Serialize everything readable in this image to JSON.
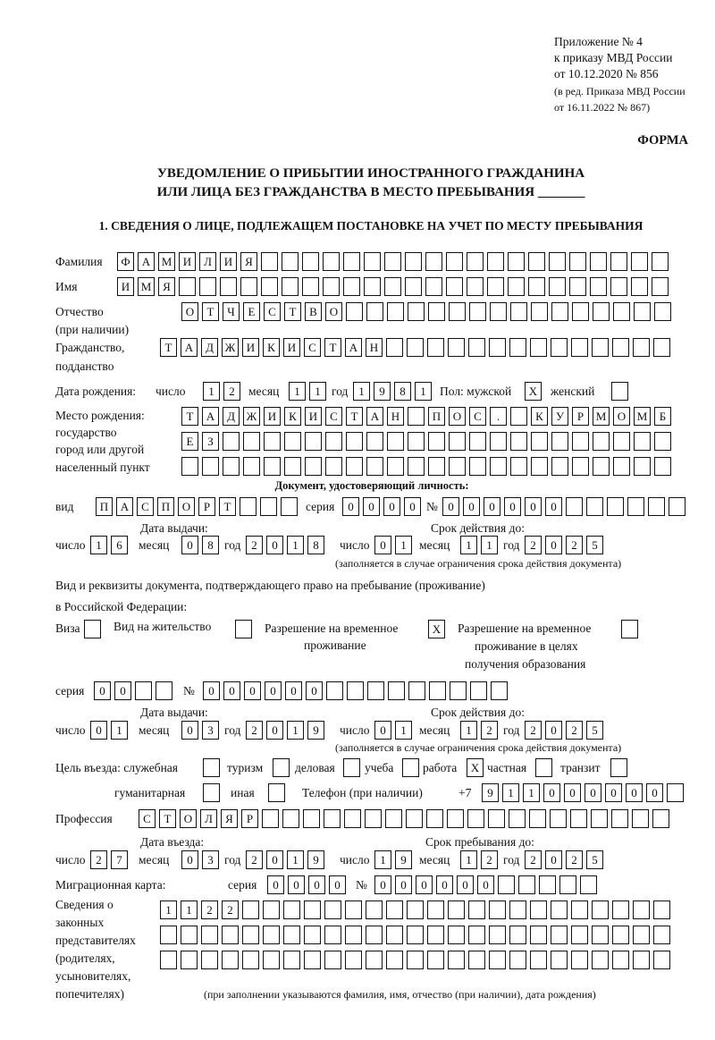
{
  "header": {
    "appendix": "Приложение № 4",
    "order": "к приказу МВД России",
    "order_date": "от 10.12.2020 № 856",
    "revision1": "(в ред. Приказа МВД России",
    "revision2": "от 16.11.2022 № 867)",
    "form_label": "ФОРМА",
    "title1": "УВЕДОМЛЕНИЕ О ПРИБЫТИИ ИНОСТРАННОГО ГРАЖДАНИНА",
    "title2": "ИЛИ ЛИЦА БЕЗ ГРАЖДАНСТВА В МЕСТО ПРЕБЫВАНИЯ _______",
    "section1": "1. СВЕДЕНИЯ О ЛИЦЕ, ПОДЛЕЖАЩЕМ ПОСТАНОВКЕ НА УЧЕТ ПО МЕСТУ ПРЕБЫВАНИЯ"
  },
  "labels": {
    "surname": "Фамилия",
    "name": "Имя",
    "patronymic1": "Отчество",
    "patronymic2": "(при наличии)",
    "citizenship1": "Гражданство,",
    "citizenship2": "подданство",
    "birth_date": "Дата рождения:",
    "day": "число",
    "month": "месяц",
    "year": "год",
    "sex": "Пол: мужской",
    "female": "женский",
    "birthplace1": "Место рождения:",
    "birthplace2": "государство",
    "birthplace3": "город или другой",
    "birthplace4": "населенный пункт",
    "id_doc": "Документ, удостоверяющий личность:",
    "kind": "вид",
    "series": "серия",
    "number": "№",
    "issue_date": "Дата выдачи:",
    "valid_until": "Срок действия до:",
    "valid_note": "(заполняется в случае ограничения срока действия документа)",
    "residence_doc1": "Вид и реквизиты документа, подтверждающего право на пребывание (проживание)",
    "residence_doc2": "в Российской Федерации:",
    "visa": "Виза",
    "residence_permit": "Вид на жительство",
    "temp_permit1": "Разрешение на временное",
    "temp_permit2": "проживание",
    "edu_permit1": "Разрешение на временное",
    "edu_permit2": "проживание в целях",
    "edu_permit3": "получения образования",
    "purpose": "Цель въезда: служебная",
    "tourism": "туризм",
    "business": "деловая",
    "study": "учеба",
    "work": "работа",
    "private": "частная",
    "transit": "транзит",
    "humanitarian": "гуманитарная",
    "other": "иная",
    "phone": "Телефон (при наличии)",
    "phone_prefix": "+7",
    "profession": "Профессия",
    "entry_date": "Дата въезда:",
    "stay_until": "Срок пребывания до:",
    "migration_card": "Миграционная карта:",
    "reps1": "Сведения о",
    "reps2": "законных",
    "reps3": "представителях",
    "reps4": "(родителях,",
    "reps5": "усыновителях,",
    "reps6": "попечителях)",
    "reps_note": "(при заполнении указываются фамилия, имя, отчество (при наличии), дата рождения)"
  },
  "fields": {
    "surname": "ФАМИЛИЯ",
    "name": "ИМЯ",
    "patronymic": "ОТЧЕСТВО",
    "citizenship": "ТАДЖИКИСТАН",
    "birth_day": "12",
    "birth_month": "11",
    "birth_year": "1981",
    "sex_male": "X",
    "sex_female": "",
    "birthplace1": "ТАДЖИКИСТАН ПОС. КУРМОМБ",
    "birthplace2": "ЕЗ",
    "birthplace3": "",
    "id_kind": "ПАСПОРТ",
    "id_series": "0000",
    "id_number": "000000",
    "id_issue_day": "16",
    "id_issue_month": "08",
    "id_issue_year": "2018",
    "id_valid_day": "01",
    "id_valid_month": "11",
    "id_valid_year": "2025",
    "visa": "",
    "residence_permit": "",
    "temp_permit": "X",
    "edu_permit": "",
    "res_series": "00",
    "res_number": "000000",
    "res_issue_day": "01",
    "res_issue_month": "03",
    "res_issue_year": "2019",
    "res_valid_day": "01",
    "res_valid_month": "12",
    "res_valid_year": "2025",
    "p_official": "",
    "p_tourism": "",
    "p_business": "",
    "p_study": "",
    "p_work": "X",
    "p_private": "",
    "p_transit": "",
    "p_humanitarian": "",
    "p_other": "",
    "phone": "911000000",
    "profession": "СТОЛЯР",
    "entry_day": "27",
    "entry_month": "03",
    "entry_year": "2019",
    "stay_day": "19",
    "stay_month": "12",
    "stay_year": "2025",
    "mc_series": "0000",
    "mc_number": "000000",
    "reps1": "1122",
    "reps2": "",
    "reps3": ""
  }
}
